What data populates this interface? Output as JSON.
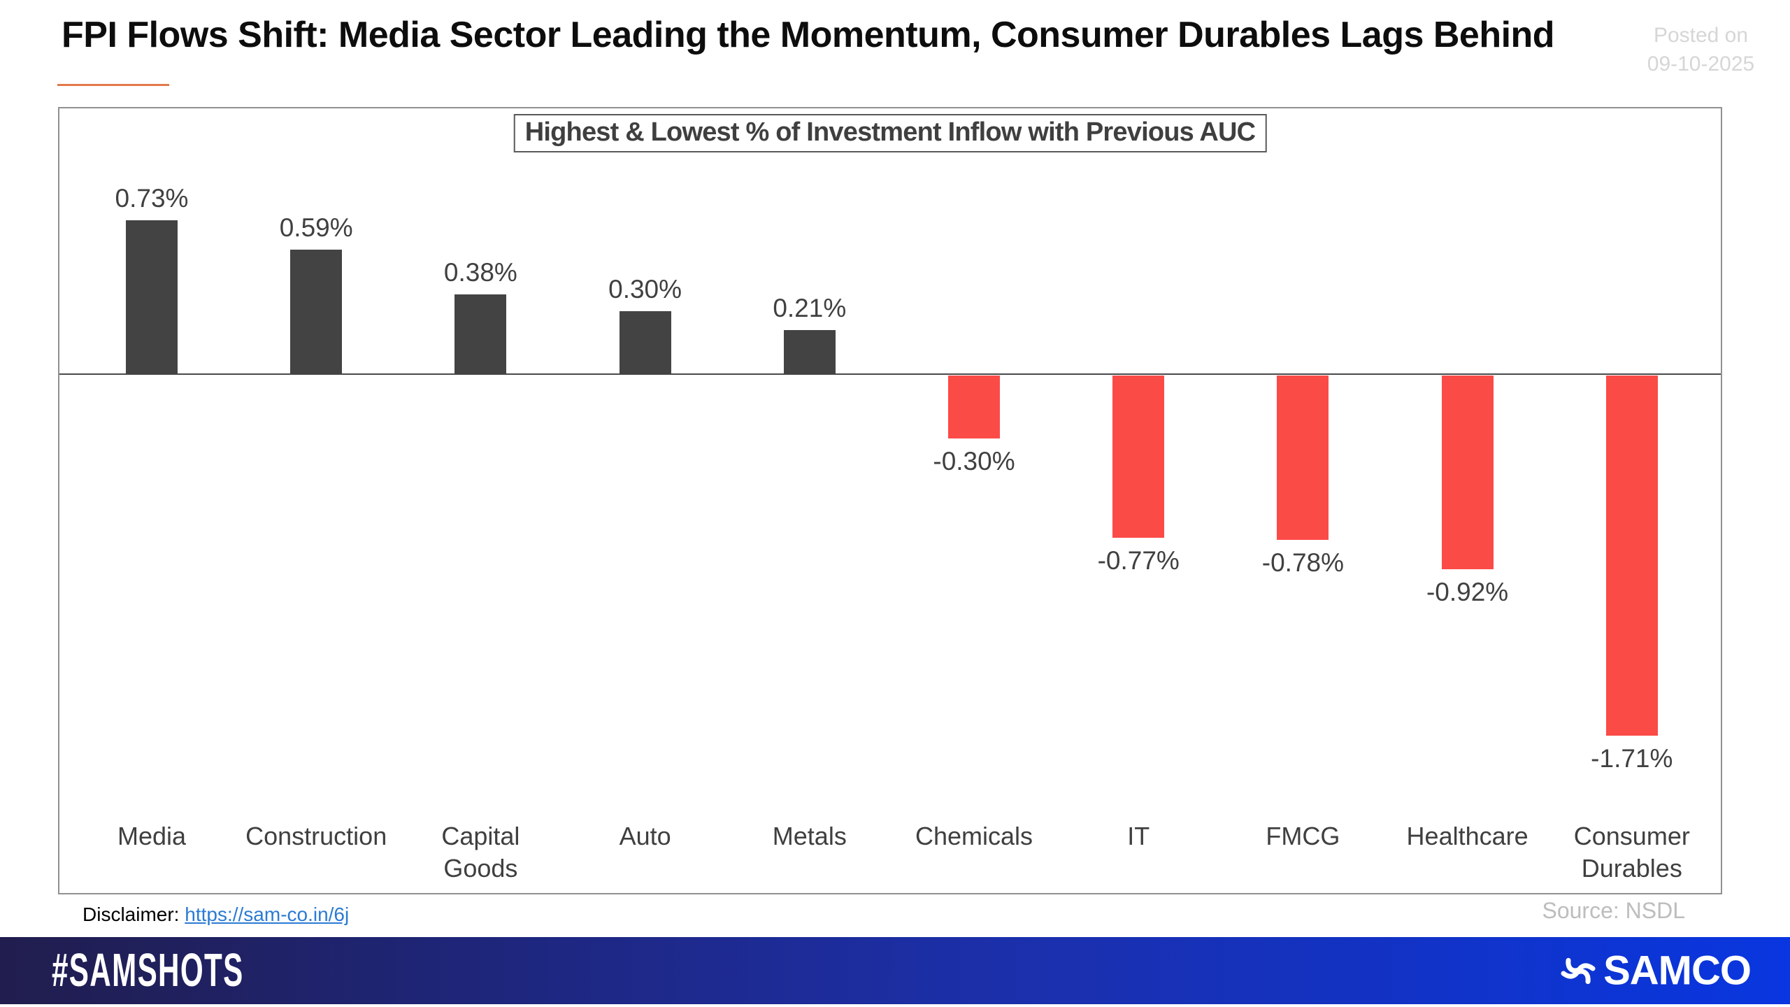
{
  "header": {
    "title": "FPI Flows Shift: Media Sector Leading the Momentum, Consumer Durables Lags Behind",
    "posted_on": [
      "Posted on",
      "09-10-2025"
    ]
  },
  "chart_data": {
    "type": "bar",
    "title": "Highest & Lowest % of Investment Inflow with Previous AUC",
    "categories": [
      "Media",
      "Construction",
      "Capital Goods",
      "Auto",
      "Metals",
      "Chemicals",
      "IT",
      "FMCG",
      "Healthcare",
      "Consumer Durables"
    ],
    "values": [
      0.73,
      0.59,
      0.38,
      0.3,
      0.21,
      -0.3,
      -0.77,
      -0.78,
      -0.92,
      -1.71
    ],
    "value_labels": [
      "0.73%",
      "0.59%",
      "0.38%",
      "0.30%",
      "0.21%",
      "-0.30%",
      "-0.77%",
      "-0.78%",
      "-0.92%",
      "-1.71%"
    ],
    "positive_color": "#434343",
    "negative_color": "#FB4B47",
    "label_color": "#404040",
    "baseline": 0,
    "ylim": [
      -1.9,
      0.9
    ],
    "grid": false,
    "legend": "none"
  },
  "footnotes": {
    "disclaimer_label": "Disclaimer:",
    "disclaimer_link": "https://sam-co.in/6j",
    "source": "Source: NSDL"
  },
  "brand_bar": {
    "hashtag": "#SAMSHOTS",
    "brand_name": "SAMCO",
    "gradient": [
      "#211D4E",
      "#1C2FA9",
      "#0936E0"
    ]
  },
  "accent": {
    "title_underline_color": "#E2794A",
    "link_color": "#2B7BD3"
  }
}
